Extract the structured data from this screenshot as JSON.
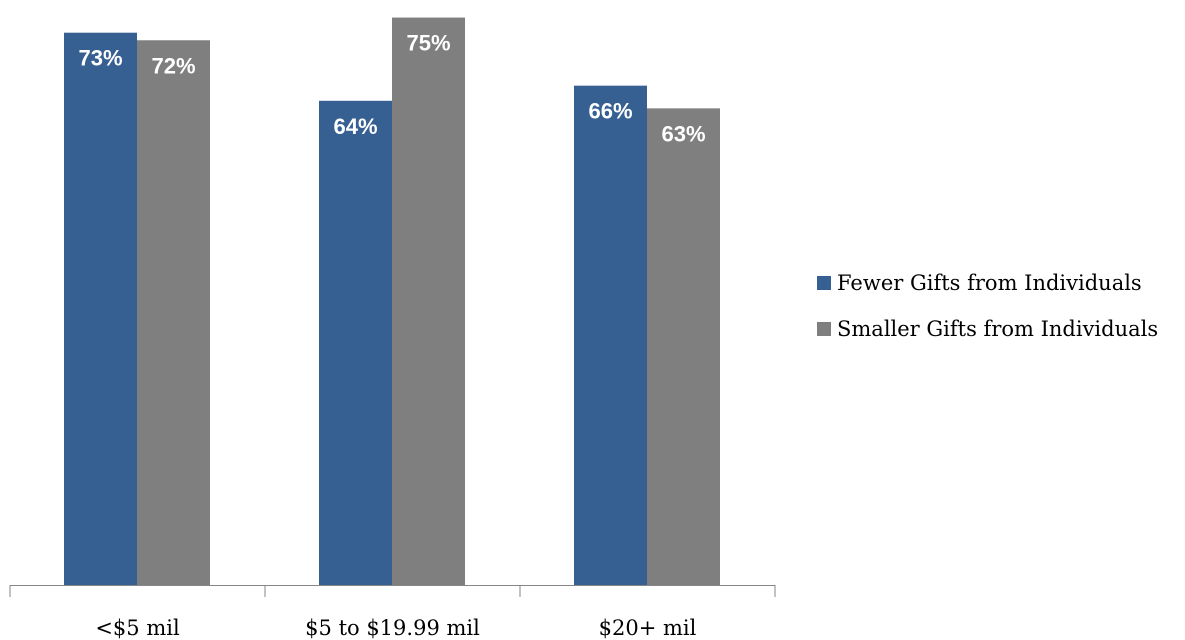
{
  "chart_data": {
    "type": "bar",
    "categories": [
      "<$5 mil",
      "$5 to $19.99 mil",
      "$20+ mil"
    ],
    "series": [
      {
        "name": "Fewer Gifts from Individuals",
        "values": [
          73,
          64,
          66
        ],
        "labels": [
          "73%",
          "64%",
          "66%"
        ],
        "color": "#376092"
      },
      {
        "name": "Smaller Gifts from Individuals",
        "values": [
          72,
          75,
          63
        ],
        "labels": [
          "72%",
          "75%",
          "63%"
        ],
        "color": "#7f7f7f"
      }
    ],
    "ylim": [
      0,
      76
    ],
    "grid": false,
    "legend_position": "right"
  }
}
